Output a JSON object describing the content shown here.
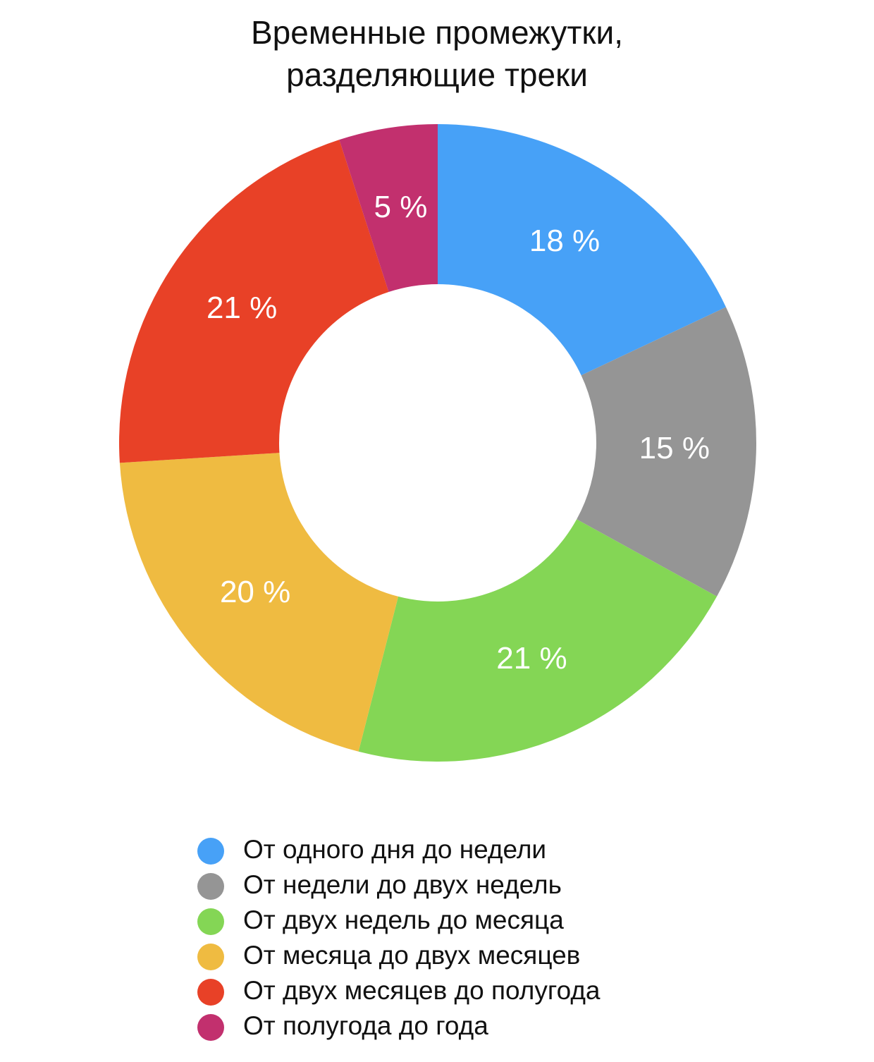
{
  "chart_data": {
    "type": "donut",
    "title": "Временные промежутки, разделяющие треки",
    "categories": [
      "От одного дня до недели",
      "От недели до двух недель",
      "От двух недель до месяца",
      "От месяца до двух месяцев",
      "От двух месяцев до полугода",
      "От полугода до года"
    ],
    "values": [
      18,
      15,
      21,
      20,
      21,
      5
    ],
    "value_labels": [
      "18 %",
      "15 %",
      "21 %",
      "20 %",
      "21 %",
      "5 %"
    ],
    "colors": [
      "#47a1f7",
      "#959595",
      "#84d655",
      "#efbb41",
      "#e84127",
      "#c2306e"
    ],
    "legend": "bottom"
  }
}
